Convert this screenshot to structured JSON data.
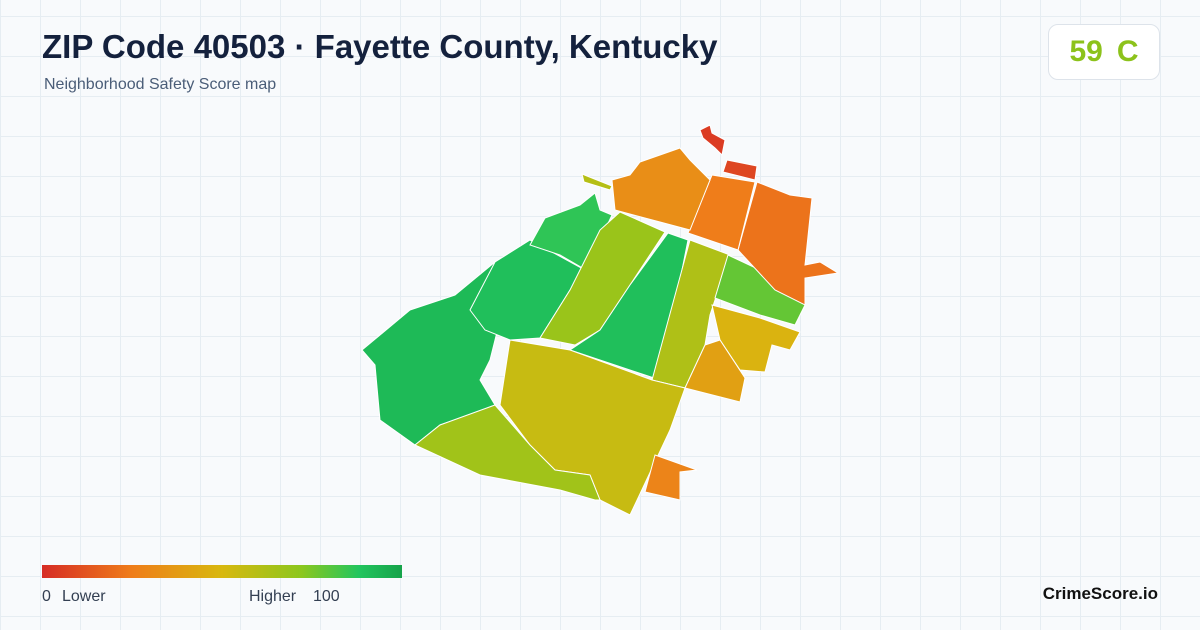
{
  "header": {
    "title": "ZIP Code 40503 · Fayette County, Kentucky",
    "subtitle": "Neighborhood Safety Score map"
  },
  "score": {
    "value": 59,
    "grade": "C"
  },
  "legend": {
    "min": 0,
    "min_label": "Lower",
    "max_label": "Higher",
    "max": 100
  },
  "map": {
    "regions": [
      {
        "score": 92
      },
      {
        "score": 90
      },
      {
        "score": 86
      },
      {
        "score": 68
      },
      {
        "score": 90
      },
      {
        "score": 62
      },
      {
        "score": 78
      },
      {
        "score": 48
      },
      {
        "score": 40
      },
      {
        "score": 22
      },
      {
        "score": 25
      },
      {
        "score": 32
      },
      {
        "score": 5
      },
      {
        "score": 8
      },
      {
        "score": 60
      },
      {
        "score": 55
      },
      {
        "score": 66
      },
      {
        "score": 28
      }
    ]
  },
  "footer": {
    "brand": "CrimeScore.io"
  }
}
